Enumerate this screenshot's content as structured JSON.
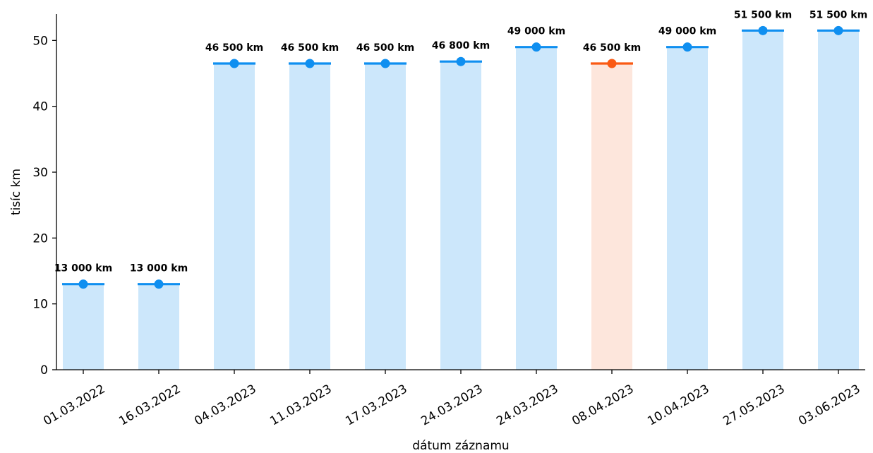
{
  "chart_data": {
    "type": "bar",
    "title": "",
    "xlabel": "dátum záznamu",
    "ylabel": "tisíc km",
    "ylim": [
      0,
      54
    ],
    "yticks": [
      0,
      10,
      20,
      30,
      40,
      50
    ],
    "grid": false,
    "categories": [
      "01.03.2022",
      "16.03.2022",
      "04.03.2023",
      "11.03.2023",
      "17.03.2023",
      "24.03.2023",
      "24.03.2023",
      "08.04.2023",
      "10.04.2023",
      "27.05.2023",
      "03.06.2023"
    ],
    "values": [
      13.0,
      13.0,
      46.5,
      46.5,
      46.5,
      46.8,
      49.0,
      46.5,
      49.0,
      51.5,
      51.5
    ],
    "data_labels": [
      "13 000 km",
      "13 000 km",
      "46 500 km",
      "46 500 km",
      "46 500 km",
      "46 800 km",
      "49 000 km",
      "46 500 km",
      "49 000 km",
      "51 500 km",
      "51 500 km"
    ],
    "highlighted_index": 7,
    "colors": {
      "bar_fill": "#cce7fb",
      "marker": "#0f8ff0",
      "highlight_bar_fill": "#fde6dc",
      "highlight_marker": "#fa5a14",
      "axis": "#000000"
    }
  }
}
